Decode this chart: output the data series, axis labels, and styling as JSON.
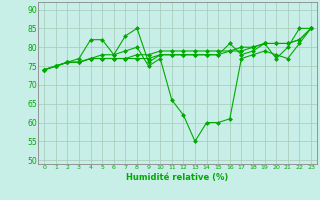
{
  "background_color": "#c8eee8",
  "grid_color": "#a8c8b8",
  "line_color": "#00aa00",
  "xlabel": "Humidité relative (%)",
  "xlabel_color": "#00aa00",
  "ylabel_ticks": [
    50,
    55,
    60,
    65,
    70,
    75,
    80,
    85,
    90
  ],
  "xlim": [
    -0.5,
    23.5
  ],
  "ylim": [
    49,
    92
  ],
  "xticks": [
    0,
    1,
    2,
    3,
    4,
    5,
    6,
    7,
    8,
    9,
    10,
    11,
    12,
    13,
    14,
    15,
    16,
    17,
    18,
    19,
    20,
    21,
    22,
    23
  ],
  "series": [
    [
      74,
      75,
      76,
      76,
      77,
      77,
      77,
      77,
      78,
      78,
      79,
      79,
      79,
      79,
      79,
      79,
      79,
      80,
      80,
      81,
      81,
      81,
      82,
      85
    ],
    [
      74,
      75,
      76,
      77,
      82,
      82,
      78,
      83,
      85,
      76,
      78,
      78,
      78,
      78,
      78,
      78,
      81,
      78,
      79,
      81,
      77,
      80,
      85,
      85
    ],
    [
      74,
      75,
      76,
      76,
      77,
      77,
      77,
      77,
      77,
      77,
      78,
      78,
      78,
      78,
      78,
      78,
      79,
      79,
      80,
      81,
      81,
      81,
      82,
      85
    ],
    [
      74,
      75,
      76,
      76,
      77,
      78,
      78,
      79,
      80,
      75,
      77,
      66,
      62,
      55,
      60,
      60,
      61,
      77,
      78,
      79,
      78,
      77,
      81,
      85
    ]
  ]
}
